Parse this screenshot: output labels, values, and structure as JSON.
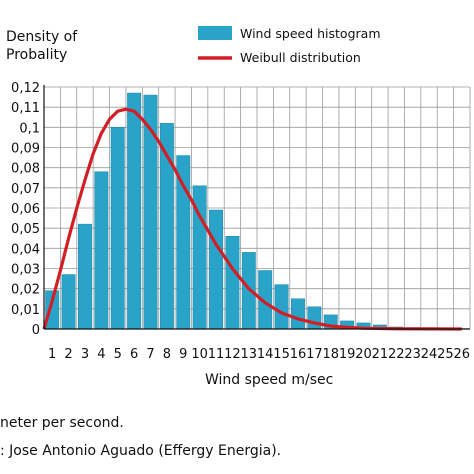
{
  "chart_data": {
    "type": "bar",
    "ylabel_lines": [
      "Density of",
      "Probality"
    ],
    "xlabel": "Wind speed m/sec",
    "legend": {
      "histogram": "Wind speed histogram",
      "weibull": "Weibull distribution"
    },
    "colors": {
      "bar": "#2aa3c8",
      "bar_edge": "#1a86a8",
      "curve": "#d21f26",
      "grid": "#9a9a9a"
    },
    "ylim": [
      0,
      0.12
    ],
    "yticks": [
      "0",
      "0,01",
      "0,02",
      "0,03",
      "0,04",
      "0,05",
      "0,06",
      "0,07",
      "0,08",
      "0,09",
      "0,1",
      "0,11",
      "0,12"
    ],
    "categories": [
      "1",
      "2",
      "3",
      "4",
      "5",
      "6",
      "7",
      "8",
      "9",
      "10",
      "11",
      "12",
      "13",
      "14",
      "15",
      "16",
      "17",
      "18",
      "19",
      "20",
      "21",
      "22",
      "23",
      "24",
      "25",
      "26"
    ],
    "series": [
      {
        "name": "Wind speed histogram",
        "values": [
          0.019,
          0.027,
          0.052,
          0.078,
          0.1,
          0.117,
          0.116,
          0.102,
          0.086,
          0.071,
          0.059,
          0.046,
          0.038,
          0.029,
          0.022,
          0.015,
          0.011,
          0.007,
          0.004,
          0.003,
          0.002,
          0.001,
          0.0007,
          0.0005,
          0.0003,
          0.0002
        ]
      },
      {
        "name": "Weibull distribution",
        "x": [
          0.5,
          1,
          1.5,
          2,
          2.5,
          3,
          3.5,
          4,
          4.5,
          5,
          5.5,
          6,
          6.5,
          7,
          7.5,
          8,
          8.5,
          9,
          9.5,
          10,
          10.5,
          11,
          11.5,
          12,
          12.5,
          13,
          14,
          15,
          16,
          17,
          18,
          19,
          20,
          22,
          24,
          26
        ],
        "y": [
          0.0,
          0.014,
          0.029,
          0.045,
          0.06,
          0.074,
          0.087,
          0.097,
          0.104,
          0.108,
          0.109,
          0.108,
          0.104,
          0.099,
          0.093,
          0.086,
          0.079,
          0.071,
          0.064,
          0.056,
          0.049,
          0.042,
          0.036,
          0.03,
          0.025,
          0.02,
          0.013,
          0.008,
          0.005,
          0.003,
          0.0015,
          0.0008,
          0.0004,
          0.0001,
          3e-05,
          0.0
        ]
      }
    ]
  },
  "captions": {
    "line1": "neter per second.",
    "line2": ": Jose Antonio Aguado (Effergy Energia)."
  }
}
